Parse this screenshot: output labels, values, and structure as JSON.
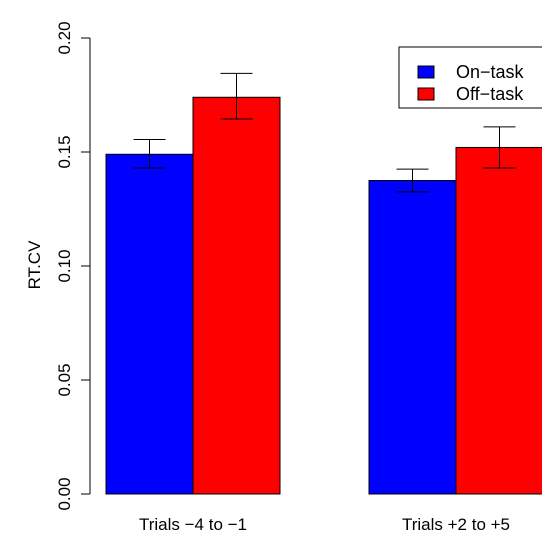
{
  "chart_data": {
    "type": "bar",
    "title": "",
    "xlabel": "",
    "ylabel": "RT.CV",
    "ylim": [
      0,
      0.2
    ],
    "y_ticks": [
      "0.00",
      "0.05",
      "0.10",
      "0.15",
      "0.20"
    ],
    "categories": [
      "Trials −4 to −1",
      "Trials +2 to +5"
    ],
    "series": [
      {
        "name": "On−task",
        "color": "#0000ff",
        "values": [
          0.149,
          0.1375
        ],
        "error_low": [
          0.143,
          0.1325
        ],
        "error_high": [
          0.1555,
          0.1425
        ]
      },
      {
        "name": "Off−task",
        "color": "#ff0000",
        "values": [
          0.174,
          0.152
        ],
        "error_low": [
          0.1645,
          0.143
        ],
        "error_high": [
          0.1845,
          0.161
        ]
      }
    ],
    "legend_position": "top-right",
    "grid": false
  }
}
